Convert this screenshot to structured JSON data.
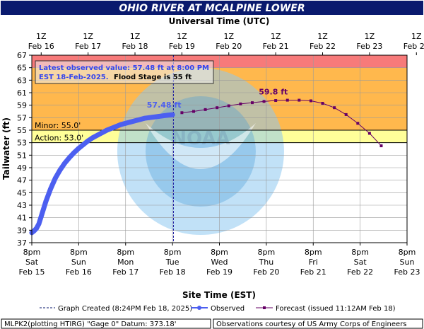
{
  "chart_data": {
    "type": "line",
    "title": "OHIO RIVER AT MCALPINE LOWER",
    "top_axis_title": "Universal Time (UTC)",
    "top_ticks": [
      {
        "hour": "1Z",
        "date": "Feb 16"
      },
      {
        "hour": "1Z",
        "date": "Feb 17"
      },
      {
        "hour": "1Z",
        "date": "Feb 18"
      },
      {
        "hour": "1Z",
        "date": "Feb 19"
      },
      {
        "hour": "1Z",
        "date": "Feb 20"
      },
      {
        "hour": "1Z",
        "date": "Feb 21"
      },
      {
        "hour": "1Z",
        "date": "Feb 22"
      },
      {
        "hour": "1Z",
        "date": "Feb 23"
      },
      {
        "hour": "1Z",
        "date": "Feb 24"
      }
    ],
    "xlabel": "Site Time (EST)",
    "bottom_ticks": [
      {
        "time": "8pm",
        "day": "Sat",
        "date": "Feb 15"
      },
      {
        "time": "8pm",
        "day": "Sun",
        "date": "Feb 16"
      },
      {
        "time": "8pm",
        "day": "Mon",
        "date": "Feb 17"
      },
      {
        "time": "8pm",
        "day": "Tue",
        "date": "Feb 18"
      },
      {
        "time": "8pm",
        "day": "Wed",
        "date": "Feb 19"
      },
      {
        "time": "8pm",
        "day": "Thu",
        "date": "Feb 20"
      },
      {
        "time": "8pm",
        "day": "Fri",
        "date": "Feb 21"
      },
      {
        "time": "8pm",
        "day": "Sat",
        "date": "Feb 22"
      },
      {
        "time": "8pm",
        "day": "Sun",
        "date": "Feb 23"
      }
    ],
    "ylabel": "Tailwater (ft)",
    "ylim": [
      37,
      67
    ],
    "yticks": [
      37,
      39,
      41,
      43,
      45,
      47,
      49,
      51,
      53,
      55,
      57,
      59,
      61,
      63,
      65,
      67
    ],
    "x_range_days_from_feb15_8pm": [
      0,
      8
    ],
    "bands": [
      {
        "from": 65,
        "to": 67,
        "color": "#f77a7a"
      },
      {
        "from": 55,
        "to": 65,
        "color": "#ffb84d"
      },
      {
        "from": 53,
        "to": 55,
        "color": "#ffff99"
      }
    ],
    "thresholds": [
      {
        "label": "Minor: 55.0'",
        "value": 55.0
      },
      {
        "label": "Action: 53.0'",
        "value": 53.0
      }
    ],
    "observed_color": "#4c5ff0",
    "forecast_color": "#660066",
    "graph_created_x": 3.02,
    "observed": {
      "x": [
        0,
        0.05,
        0.1,
        0.15,
        0.2,
        0.3,
        0.4,
        0.5,
        0.6,
        0.7,
        0.8,
        0.9,
        1.0,
        1.1,
        1.2,
        1.3,
        1.4,
        1.5,
        1.6,
        1.7,
        1.8,
        1.9,
        2.0,
        2.1,
        2.2,
        2.3,
        2.4,
        2.5,
        2.6,
        2.7,
        2.8,
        2.9,
        3.0
      ],
      "y": [
        38.6,
        38.9,
        39.3,
        40.0,
        41.2,
        43.6,
        45.6,
        47.3,
        48.6,
        49.7,
        50.6,
        51.4,
        52.1,
        52.7,
        53.3,
        53.8,
        54.2,
        54.6,
        55.0,
        55.3,
        55.6,
        55.9,
        56.1,
        56.3,
        56.5,
        56.7,
        56.9,
        57.0,
        57.1,
        57.2,
        57.3,
        57.4,
        57.48
      ]
    },
    "forecast": {
      "x": [
        3.2,
        3.45,
        3.7,
        3.95,
        4.2,
        4.45,
        4.7,
        4.95,
        5.2,
        5.45,
        5.7,
        5.95,
        6.2,
        6.45,
        6.7,
        6.95,
        7.2,
        7.45
      ],
      "y": [
        57.8,
        58.0,
        58.3,
        58.6,
        58.9,
        59.2,
        59.4,
        59.6,
        59.75,
        59.8,
        59.8,
        59.7,
        59.3,
        58.6,
        57.5,
        56.1,
        54.5,
        52.5
      ]
    },
    "annotations": {
      "observed_value": "57.48 ft",
      "forecast_peak": "59.8 ft"
    },
    "info_box": {
      "line1": "Latest observed value: 57.48 ft at 8:00 PM",
      "line2_blue": "EST 18-Feb-2025.",
      "line2_black": "Flood Stage is 55 ft"
    },
    "legend": [
      {
        "label": "Graph Created (8:24PM Feb 18, 2025)"
      },
      {
        "label": "Observed"
      },
      {
        "label": "Forecast (issued 11:12AM Feb 18)"
      }
    ],
    "footer_left": "MLPK2(plotting HTIRG) \"Gage 0\" Datum: 373.18'",
    "footer_right": "Observations courtesy of US Army Corps of Engineers",
    "watermark_text": "NATIONAL OCEANIC AND ATMOSPHERIC ADMINISTRATION · U.S. DEPARTMENT OF COMMERCE · NOAA"
  }
}
